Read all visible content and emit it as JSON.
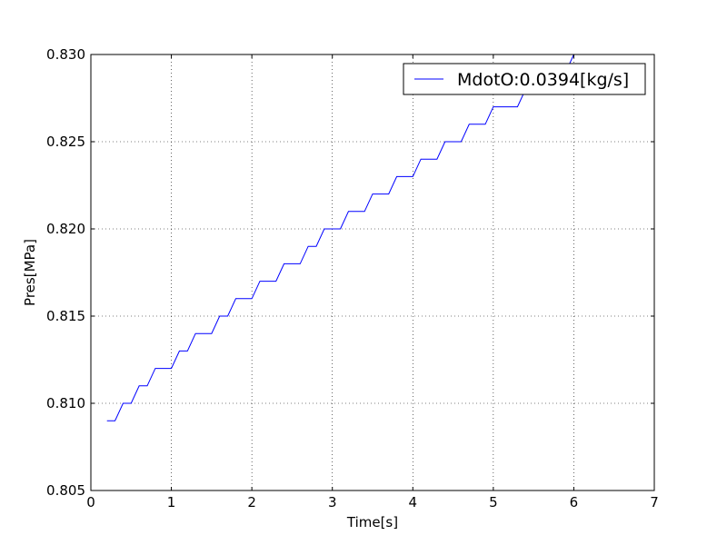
{
  "chart_data": {
    "type": "line",
    "title": "",
    "xlabel": "Time[s]",
    "ylabel": "Pres[MPa]",
    "xlim": [
      0,
      7
    ],
    "ylim": [
      0.805,
      0.83
    ],
    "x_ticks": [
      0,
      1,
      2,
      3,
      4,
      5,
      6,
      7
    ],
    "x_tick_labels": [
      "0",
      "1",
      "2",
      "3",
      "4",
      "5",
      "6",
      "7"
    ],
    "y_ticks": [
      0.805,
      0.81,
      0.815,
      0.82,
      0.825,
      0.83
    ],
    "y_tick_labels": [
      "0.805",
      "0.810",
      "0.815",
      "0.820",
      "0.825",
      "0.830"
    ],
    "grid": true,
    "legend_position": "top-right",
    "series": [
      {
        "name": "MdotO:0.0394[kg/s]",
        "color": "#0000ff",
        "x": [
          0.2,
          0.3,
          0.4,
          0.5,
          0.6,
          0.7,
          0.8,
          1.0,
          1.1,
          1.2,
          1.3,
          1.5,
          1.6,
          1.7,
          1.8,
          2.0,
          2.1,
          2.3,
          2.4,
          2.6,
          2.7,
          2.8,
          2.9,
          3.1,
          3.2,
          3.4,
          3.5,
          3.7,
          3.8,
          4.0,
          4.1,
          4.3,
          4.4,
          4.6,
          4.7,
          4.9,
          5.0,
          5.3,
          5.4,
          5.6,
          5.7,
          5.9,
          6.0
        ],
        "y": [
          0.809,
          0.809,
          0.81,
          0.81,
          0.811,
          0.811,
          0.812,
          0.812,
          0.813,
          0.813,
          0.814,
          0.814,
          0.815,
          0.815,
          0.816,
          0.816,
          0.817,
          0.817,
          0.818,
          0.818,
          0.819,
          0.819,
          0.82,
          0.82,
          0.821,
          0.821,
          0.822,
          0.822,
          0.823,
          0.823,
          0.824,
          0.824,
          0.825,
          0.825,
          0.826,
          0.826,
          0.827,
          0.827,
          0.828,
          0.828,
          0.829,
          0.829,
          0.83
        ]
      }
    ]
  }
}
